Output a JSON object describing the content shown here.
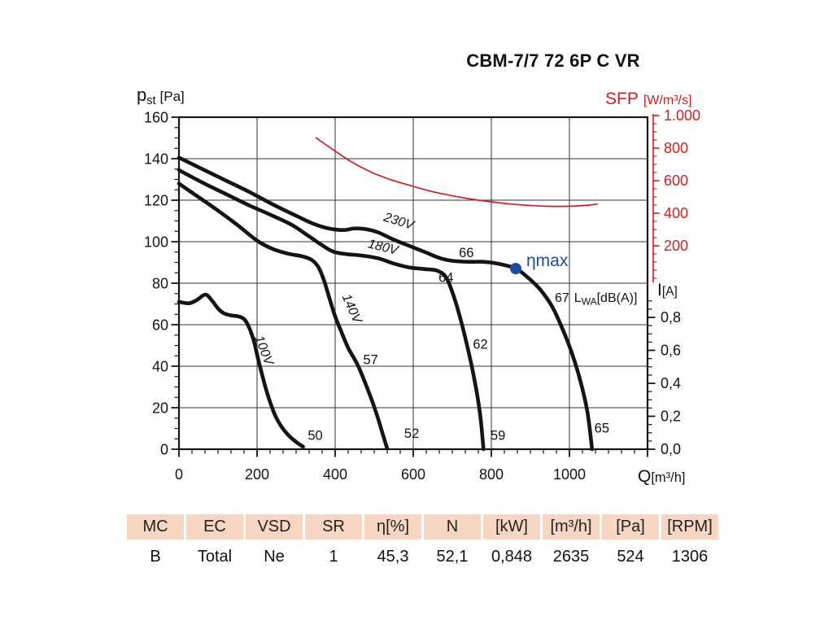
{
  "title": "CBM-7/7 72 6P C VR",
  "colors": {
    "black": "#141414",
    "grid": "#333333",
    "red": "#cc2020",
    "blue": "#1e4b9b",
    "table_header_bg": "#f7d6c4"
  },
  "chart_data": {
    "type": "line",
    "title": "CBM-7/7 72 6P C VR",
    "x_axis": {
      "label": "Q",
      "unit": "[m³/h]",
      "min": 0,
      "max": 1200,
      "major_step": 200,
      "minor_step": 33.333,
      "grid_values": [
        200,
        400,
        600,
        800,
        1000
      ],
      "tick_labels": [
        "0",
        "200",
        "400",
        "600",
        "800",
        "1000"
      ],
      "tick_values": [
        0,
        200,
        400,
        600,
        800,
        1000
      ]
    },
    "y_left": {
      "symbol": "p",
      "symbol_sub": "st",
      "unit": "[Pa]",
      "min": 0,
      "max": 160,
      "major_step": 20,
      "minor_step": 5,
      "grid_values": [
        20,
        40,
        60,
        80,
        100,
        120,
        140
      ],
      "tick_labels": [
        "160",
        "140",
        "120",
        "100",
        "80",
        "60",
        "40",
        "20",
        "0"
      ],
      "tick_values": [
        160,
        140,
        120,
        100,
        80,
        60,
        40,
        20,
        0
      ]
    },
    "y_sfp": {
      "label": "SFP",
      "unit": "[W/m³/s]",
      "min": 0,
      "max": 1000,
      "major_step": 200,
      "minor_step": 50,
      "tick_labels": [
        "1.000",
        "800",
        "600",
        "400",
        "200"
      ],
      "tick_values": [
        1000,
        800,
        600,
        400,
        200
      ]
    },
    "y_current": {
      "label": "I",
      "unit": "[A]",
      "min": 0,
      "max": 0.9,
      "major_step": 0.2,
      "minor_step": 0.05,
      "tick_labels": [
        "0,8",
        "0,6",
        "0,4",
        "0,2",
        "0,0"
      ],
      "tick_values": [
        0.8,
        0.6,
        0.4,
        0.2,
        0.0
      ]
    },
    "series": [
      {
        "name": "230V",
        "points": [
          [
            0,
            140.5
          ],
          [
            60,
            135
          ],
          [
            120,
            129.5
          ],
          [
            180,
            124
          ],
          [
            240,
            118
          ],
          [
            300,
            112.5
          ],
          [
            340,
            109
          ],
          [
            380,
            106.5
          ],
          [
            420,
            105.6
          ],
          [
            450,
            106.4
          ],
          [
            480,
            106
          ],
          [
            510,
            104.5
          ],
          [
            550,
            101
          ],
          [
            590,
            98
          ],
          [
            630,
            95
          ],
          [
            670,
            92
          ],
          [
            700,
            90.8
          ],
          [
            740,
            90.3
          ],
          [
            780,
            90.3
          ],
          [
            820,
            89.3
          ],
          [
            863,
            87
          ],
          [
            895,
            82.5
          ],
          [
            925,
            77
          ],
          [
            955,
            69
          ],
          [
            980,
            59
          ],
          [
            1005,
            47
          ],
          [
            1028,
            33
          ],
          [
            1046,
            18
          ],
          [
            1058,
            0
          ]
        ]
      },
      {
        "name": "180V",
        "points": [
          [
            0,
            134.5
          ],
          [
            60,
            128.5
          ],
          [
            120,
            123
          ],
          [
            180,
            117.5
          ],
          [
            240,
            112.5
          ],
          [
            290,
            108
          ],
          [
            330,
            103
          ],
          [
            365,
            98.5
          ],
          [
            395,
            95.2
          ],
          [
            430,
            94
          ],
          [
            470,
            93.3
          ],
          [
            510,
            92
          ],
          [
            550,
            89.5
          ],
          [
            590,
            87.6
          ],
          [
            630,
            86.8
          ],
          [
            662,
            86
          ],
          [
            685,
            82.5
          ],
          [
            705,
            73
          ],
          [
            722,
            62
          ],
          [
            738,
            50
          ],
          [
            752,
            38
          ],
          [
            764,
            26
          ],
          [
            773,
            14
          ],
          [
            780,
            0
          ]
        ]
      },
      {
        "name": "140V",
        "points": [
          [
            0,
            128
          ],
          [
            50,
            121.5
          ],
          [
            100,
            115
          ],
          [
            150,
            108
          ],
          [
            200,
            100.5
          ],
          [
            240,
            96.5
          ],
          [
            280,
            94.2
          ],
          [
            315,
            93
          ],
          [
            340,
            91.2
          ],
          [
            358,
            87.5
          ],
          [
            372,
            81
          ],
          [
            385,
            73
          ],
          [
            400,
            64
          ],
          [
            415,
            57
          ],
          [
            433,
            49
          ],
          [
            458,
            40.5
          ],
          [
            480,
            30.5
          ],
          [
            497,
            22
          ],
          [
            512,
            13.5
          ],
          [
            524,
            6
          ],
          [
            533,
            0.5
          ]
        ]
      },
      {
        "name": "100V",
        "points": [
          [
            0,
            71
          ],
          [
            25,
            70.3
          ],
          [
            45,
            71.8
          ],
          [
            68,
            74.5
          ],
          [
            85,
            71.5
          ],
          [
            100,
            67.8
          ],
          [
            115,
            65.5
          ],
          [
            133,
            64.5
          ],
          [
            152,
            64
          ],
          [
            168,
            62.5
          ],
          [
            180,
            58.5
          ],
          [
            192,
            52
          ],
          [
            202,
            44
          ],
          [
            212,
            36.5
          ],
          [
            222,
            29.5
          ],
          [
            233,
            23
          ],
          [
            247,
            16
          ],
          [
            262,
            11
          ],
          [
            280,
            6.8
          ],
          [
            300,
            3.5
          ],
          [
            318,
            1.2
          ]
        ]
      }
    ],
    "sfp_curve": {
      "name": "SFP",
      "points": [
        [
          350,
          865
        ],
        [
          395,
          790
        ],
        [
          440,
          718
        ],
        [
          490,
          655
        ],
        [
          540,
          608
        ],
        [
          590,
          572
        ],
        [
          640,
          538
        ],
        [
          690,
          512
        ],
        [
          740,
          490
        ],
        [
          790,
          473
        ],
        [
          840,
          459
        ],
        [
          890,
          449
        ],
        [
          940,
          443
        ],
        [
          980,
          442
        ],
        [
          1020,
          445
        ],
        [
          1050,
          450
        ],
        [
          1072,
          456
        ]
      ]
    },
    "voltage_labels": [
      {
        "text": "230V",
        "q": 560,
        "p": 108,
        "rot": 17
      },
      {
        "text": "180V",
        "q": 520,
        "p": 95.5,
        "rot": 14
      },
      {
        "text": "140V",
        "q": 433,
        "p": 67,
        "rot": 66
      },
      {
        "text": "100V",
        "q": 208,
        "p": 47,
        "rot": 69
      }
    ],
    "point_labels": [
      {
        "text": "50",
        "q": 349,
        "p": 4.5
      },
      {
        "text": "52",
        "q": 596,
        "p": 5.5
      },
      {
        "text": "57",
        "q": 491,
        "p": 41
      },
      {
        "text": "59",
        "q": 817,
        "p": 4.5
      },
      {
        "text": "62",
        "q": 772,
        "p": 48.5
      },
      {
        "text": "64",
        "q": 684,
        "p": 80.5
      },
      {
        "text": "65",
        "q": 1083,
        "p": 8
      },
      {
        "text": "66",
        "q": 736,
        "p": 92.5
      }
    ],
    "lwa_label": {
      "num": "67",
      "main": "L",
      "sub": "WA",
      "rest": "[dB(A)]"
    },
    "eta_max": {
      "label": "ηmax",
      "q": 863,
      "p": 87
    }
  },
  "table": {
    "headers": [
      "MC",
      "EC",
      "VSD",
      "SR",
      "η[%]",
      "N",
      "[kW]",
      "[m³/h]",
      "[Pa]",
      "[RPM]"
    ],
    "values": [
      "B",
      "Total",
      "Ne",
      "1",
      "45,3",
      "52,1",
      "0,848",
      "2635",
      "524",
      "1306"
    ]
  }
}
